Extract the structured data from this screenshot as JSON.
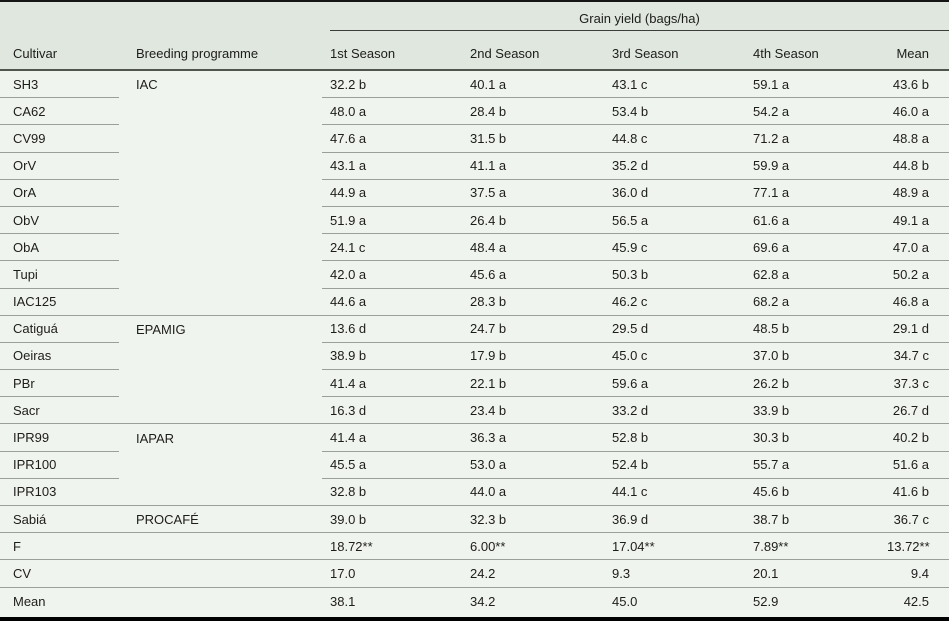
{
  "header": {
    "span_title": "Grain yield (bags/ha)",
    "columns": [
      "Cultivar",
      "Breeding programme",
      "1st Season",
      "2nd Season",
      "3rd Season",
      "4th Season",
      "Mean"
    ]
  },
  "colors": {
    "header_bg": "#dfe7de",
    "body_bg": "#f0f4ee",
    "separator": "#9b9f99",
    "header_rule": "#50554e",
    "top_border": "#161616",
    "bottom_border": "#000000"
  },
  "rows": [
    {
      "cultivar": "SH3",
      "programme": "IAC",
      "values": [
        "32.2 b",
        "40.1 a",
        "43.1 c",
        "59.1 a",
        "43.6 b"
      ],
      "sep": "partial"
    },
    {
      "cultivar": "CA62",
      "programme": "",
      "values": [
        "48.0 a",
        "28.4 b",
        "53.4 b",
        "54.2 a",
        "46.0 a"
      ],
      "sep": "partial"
    },
    {
      "cultivar": "CV99",
      "programme": "",
      "values": [
        "47.6 a",
        "31.5 b",
        "44.8 c",
        "71.2 a",
        "48.8 a"
      ],
      "sep": "partial"
    },
    {
      "cultivar": "OrV",
      "programme": "",
      "values": [
        "43.1 a",
        "41.1 a",
        "35.2 d",
        "59.9 a",
        "44.8 b"
      ],
      "sep": "partial"
    },
    {
      "cultivar": "OrA",
      "programme": "",
      "values": [
        "44.9 a",
        "37.5 a",
        "36.0 d",
        "77.1 a",
        "48.9 a"
      ],
      "sep": "partial"
    },
    {
      "cultivar": "ObV",
      "programme": "",
      "values": [
        "51.9 a",
        "26.4 b",
        "56.5 a",
        "61.6 a",
        "49.1 a"
      ],
      "sep": "partial"
    },
    {
      "cultivar": "ObA",
      "programme": "",
      "values": [
        "24.1 c",
        "48.4 a",
        "45.9 c",
        "69.6 a",
        "47.0 a"
      ],
      "sep": "partial"
    },
    {
      "cultivar": "Tupi",
      "programme": "",
      "values": [
        "42.0 a",
        "45.6 a",
        "50.3 b",
        "62.8 a",
        "50.2 a"
      ],
      "sep": "partial"
    },
    {
      "cultivar": "IAC125",
      "programme": "",
      "values": [
        "44.6 a",
        "28.3 b",
        "46.2 c",
        "68.2 a",
        "46.8 a"
      ],
      "sep": "full"
    },
    {
      "cultivar": "Catiguá",
      "programme": "EPAMIG",
      "values": [
        "13.6 d",
        "24.7 b",
        "29.5 d",
        "48.5 b",
        "29.1 d"
      ],
      "sep": "partial"
    },
    {
      "cultivar": "Oeiras",
      "programme": "",
      "values": [
        "38.9 b",
        "17.9 b",
        "45.0 c",
        "37.0 b",
        "34.7 c"
      ],
      "sep": "partial"
    },
    {
      "cultivar": "PBr",
      "programme": "",
      "values": [
        "41.4 a",
        "22.1 b",
        "59.6 a",
        "26.2 b",
        "37.3 c"
      ],
      "sep": "partial"
    },
    {
      "cultivar": "Sacr",
      "programme": "",
      "values": [
        "16.3 d",
        "23.4 b",
        "33.2 d",
        "33.9 b",
        "26.7 d"
      ],
      "sep": "full"
    },
    {
      "cultivar": "IPR99",
      "programme": "IAPAR",
      "values": [
        "41.4 a",
        "36.3 a",
        "52.8 b",
        "30.3 b",
        "40.2 b"
      ],
      "sep": "partial"
    },
    {
      "cultivar": "IPR100",
      "programme": "",
      "values": [
        "45.5 a",
        "53.0 a",
        "52.4 b",
        "55.7 a",
        "51.6 a"
      ],
      "sep": "partial"
    },
    {
      "cultivar": "IPR103",
      "programme": "",
      "values": [
        "32.8 b",
        "44.0 a",
        "44.1 c",
        "45.6 b",
        "41.6 b"
      ],
      "sep": "full"
    },
    {
      "cultivar": "Sabiá",
      "programme": "PROCAFÉ",
      "values": [
        "39.0 b",
        "32.3 b",
        "36.9 d",
        "38.7 b",
        "36.7 c"
      ],
      "sep": "full"
    },
    {
      "cultivar": "F",
      "programme": "",
      "values": [
        "18.72**",
        "6.00**",
        "17.04**",
        "7.89**",
        "13.72**"
      ],
      "sep": "full"
    },
    {
      "cultivar": "CV",
      "programme": "",
      "values": [
        "17.0",
        "24.2",
        "9.3",
        "20.1",
        "9.4"
      ],
      "sep": "full"
    },
    {
      "cultivar": "Mean",
      "programme": "",
      "values": [
        "38.1",
        "34.2",
        "45.0",
        "52.9",
        "42.5"
      ],
      "sep": "none"
    }
  ]
}
